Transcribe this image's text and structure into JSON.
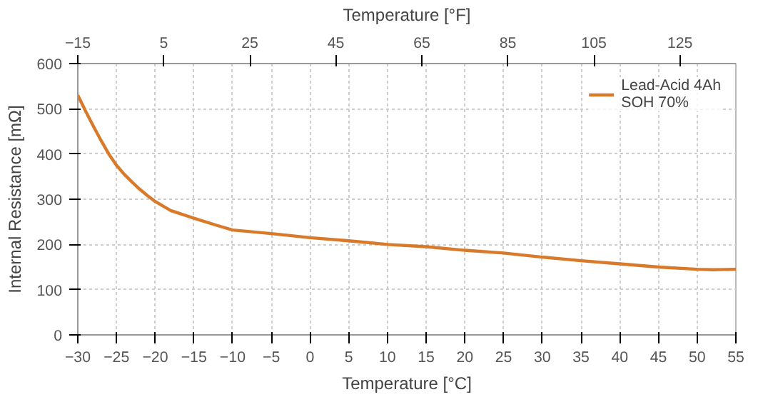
{
  "chart_data": {
    "type": "line",
    "xlabel": "Temperature [°C]",
    "ylabel": "Internal Resistance [mΩ]",
    "x2label": "Temperature [°F]",
    "x": [
      -30,
      -29,
      -28,
      -27,
      -26,
      -25,
      -24,
      -23,
      -22,
      -21,
      -20,
      -18,
      -15,
      -12,
      -10,
      -5,
      0,
      5,
      10,
      15,
      20,
      25,
      30,
      35,
      40,
      45,
      50,
      52,
      55
    ],
    "series": [
      {
        "name": "Lead-Acid 4Ah\nSOH 70%",
        "color": "#d97a2b",
        "values": [
          530,
          495,
          462,
          430,
          400,
          375,
          355,
          338,
          322,
          308,
          295,
          275,
          258,
          242,
          232,
          224,
          215,
          208,
          200,
          195,
          187,
          181,
          172,
          164,
          157,
          150,
          145,
          144,
          145
        ]
      }
    ],
    "xlim": [
      -30,
      55
    ],
    "xticks": [
      -30,
      -25,
      -20,
      -15,
      -10,
      -5,
      0,
      5,
      10,
      15,
      20,
      25,
      30,
      35,
      40,
      45,
      50,
      55
    ],
    "ylim": [
      0,
      600
    ],
    "yticks": [
      0,
      100,
      200,
      300,
      400,
      500,
      600
    ],
    "x2lim": [
      -15,
      138
    ],
    "x2ticks": [
      -15,
      5,
      25,
      45,
      65,
      85,
      105,
      125
    ],
    "grid": true,
    "legend": "top right",
    "marker": "none",
    "line_style": "solid"
  }
}
